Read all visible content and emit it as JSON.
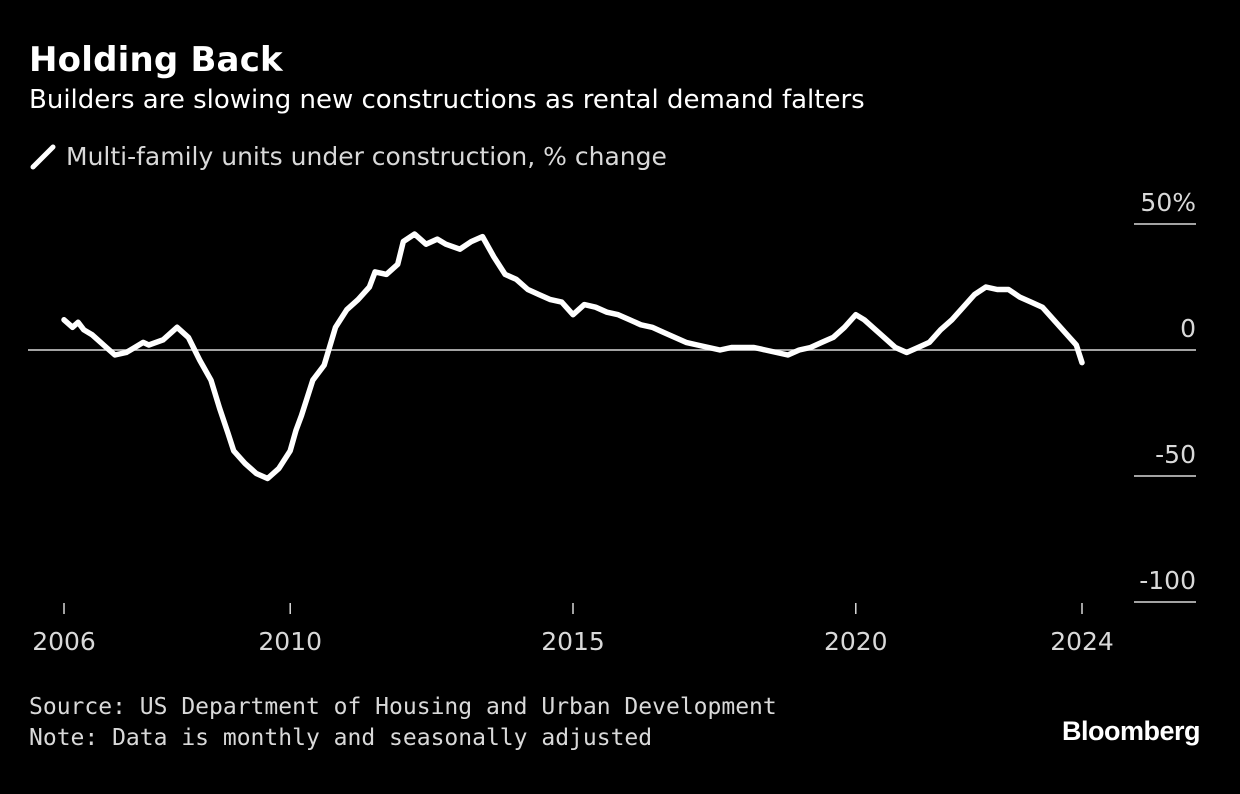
{
  "header": {
    "title": "Holding Back",
    "subtitle": "Builders are slowing new constructions as rental demand falters"
  },
  "footer": {
    "source": "Source: US Department of Housing and Urban Development",
    "note": "Note: Data is monthly and seasonally adjusted",
    "brand": "Bloomberg"
  },
  "colors": {
    "background": "#000000",
    "line": "#ffffff",
    "axis_text": "#d9d9d9"
  },
  "chart_data": {
    "type": "line",
    "title": "Holding Back",
    "subtitle": "Builders are slowing new constructions as rental demand falters",
    "legend_position": "top-left",
    "grid": false,
    "ylim": [
      -100,
      50
    ],
    "y_ticks": [
      {
        "value": 50,
        "label": "50%"
      },
      {
        "value": 0,
        "label": "0"
      },
      {
        "value": -50,
        "label": "-50"
      },
      {
        "value": -100,
        "label": "-100"
      }
    ],
    "xlim": [
      2005.7,
      2025.2
    ],
    "x_ticks": [
      {
        "value": 2006,
        "label": "2006"
      },
      {
        "value": 2010,
        "label": "2010"
      },
      {
        "value": 2015,
        "label": "2015"
      },
      {
        "value": 2020,
        "label": "2020"
      },
      {
        "value": 2024,
        "label": "2024"
      }
    ],
    "series": [
      {
        "name": "Multi-family units under construction, % change",
        "color": "#ffffff",
        "x": [
          2006.0,
          2006.15,
          2006.25,
          2006.35,
          2006.5,
          2006.75,
          2006.9,
          2007.1,
          2007.25,
          2007.4,
          2007.5,
          2007.75,
          2008.0,
          2008.2,
          2008.4,
          2008.6,
          2008.75,
          2008.9,
          2009.0,
          2009.2,
          2009.4,
          2009.6,
          2009.8,
          2010.0,
          2010.1,
          2010.2,
          2010.4,
          2010.6,
          2010.8,
          2011.0,
          2011.2,
          2011.4,
          2011.5,
          2011.7,
          2011.9,
          2012.0,
          2012.2,
          2012.4,
          2012.6,
          2012.75,
          2013.0,
          2013.2,
          2013.4,
          2013.6,
          2013.8,
          2014.0,
          2014.2,
          2014.4,
          2014.6,
          2014.8,
          2015.0,
          2015.2,
          2015.4,
          2015.6,
          2015.8,
          2016.0,
          2016.2,
          2016.4,
          2016.6,
          2016.8,
          2017.0,
          2017.2,
          2017.4,
          2017.6,
          2017.8,
          2018.0,
          2018.2,
          2018.4,
          2018.6,
          2018.8,
          2019.0,
          2019.2,
          2019.4,
          2019.6,
          2019.8,
          2020.0,
          2020.15,
          2020.3,
          2020.5,
          2020.7,
          2020.9,
          2021.1,
          2021.3,
          2021.5,
          2021.7,
          2021.9,
          2022.1,
          2022.3,
          2022.5,
          2022.7,
          2022.9,
          2023.1,
          2023.3,
          2023.5,
          2023.7,
          2023.9,
          2024.0
        ],
        "y": [
          12,
          9,
          11,
          8,
          6,
          1,
          -2,
          -1,
          1,
          3,
          2,
          4,
          9,
          5,
          -4,
          -12,
          -23,
          -33,
          -40,
          -45,
          -49,
          -51,
          -47,
          -40,
          -32,
          -26,
          -12,
          -6,
          9,
          16,
          20,
          25,
          31,
          30,
          34,
          43,
          46,
          42,
          44,
          42,
          40,
          43,
          45,
          37,
          30,
          28,
          24,
          22,
          20,
          19,
          14,
          18,
          17,
          15,
          14,
          12,
          10,
          9,
          7,
          5,
          3,
          2,
          1,
          0,
          1,
          1,
          1,
          0,
          -1,
          -2,
          0,
          1,
          3,
          5,
          9,
          14,
          12,
          9,
          5,
          1,
          -1,
          1,
          3,
          8,
          12,
          17,
          22,
          25,
          24,
          24,
          21,
          19,
          17,
          12,
          7,
          2,
          -5
        ]
      }
    ]
  }
}
